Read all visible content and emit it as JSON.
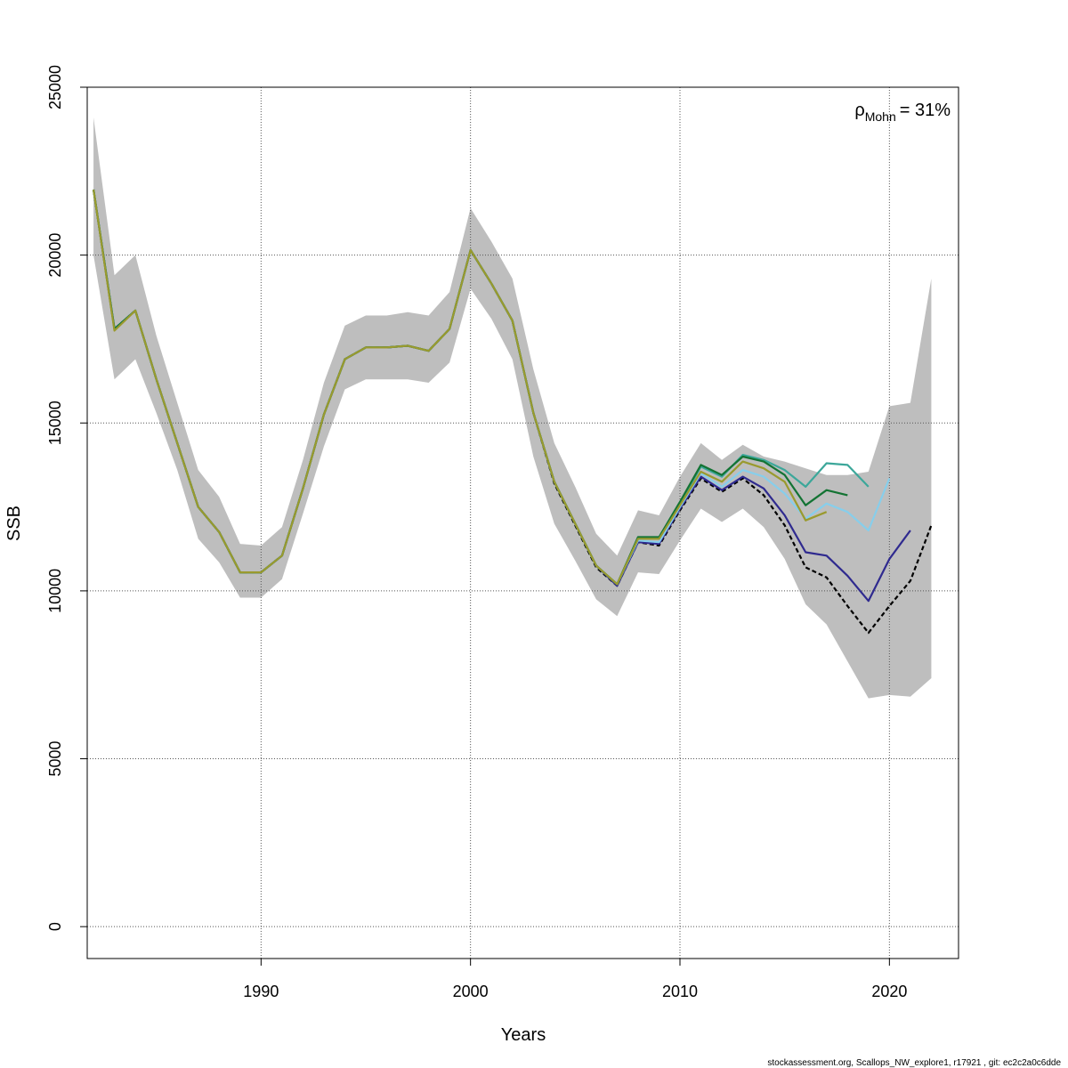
{
  "chart_data": {
    "type": "line",
    "xlabel": "Years",
    "ylabel": "SSB",
    "xlim": [
      1981.7,
      2023.3
    ],
    "ylim": [
      -950,
      25000
    ],
    "x_ticks": [
      1990,
      2000,
      2010,
      2020
    ],
    "y_ticks": [
      0,
      5000,
      10000,
      15000,
      20000,
      25000
    ],
    "grid": true,
    "annotation": {
      "symbol": "ρ",
      "subscript": "Mohn",
      "text": "= 31%"
    },
    "footer": "stockassessment.org, Scallops_NW_explore1, r17921 , git: ec2c2a0c6dde",
    "colors": {
      "band": "#bebebe",
      "grid": "#555555"
    },
    "confidence_band": {
      "x": [
        1982,
        1983,
        1984,
        1985,
        1986,
        1987,
        1988,
        1989,
        1990,
        1991,
        1992,
        1993,
        1994,
        1995,
        1996,
        1997,
        1998,
        1999,
        2000,
        2001,
        2002,
        2003,
        2004,
        2005,
        2006,
        2007,
        2008,
        2009,
        2010,
        2011,
        2012,
        2013,
        2014,
        2015,
        2016,
        2017,
        2018,
        2019,
        2020,
        2021,
        2022
      ],
      "lower": [
        20000,
        16300,
        16900,
        15300,
        13600,
        11550,
        10850,
        9800,
        9800,
        10350,
        12300,
        14300,
        16000,
        16300,
        16300,
        16300,
        16200,
        16800,
        19000,
        18100,
        16900,
        14000,
        12000,
        10900,
        9750,
        9250,
        10550,
        10500,
        11500,
        12450,
        12050,
        12450,
        11900,
        10950,
        9600,
        9000,
        7900,
        6800,
        6900,
        6850,
        7400
      ],
      "upper": [
        24100,
        19400,
        20000,
        17600,
        15600,
        13600,
        12800,
        11400,
        11350,
        11900,
        13900,
        16200,
        17900,
        18200,
        18200,
        18300,
        18200,
        18900,
        21400,
        20400,
        19300,
        16600,
        14400,
        13100,
        11700,
        11050,
        12400,
        12250,
        13400,
        14400,
        13900,
        14350,
        14000,
        13850,
        13650,
        13450,
        13450,
        13550,
        15500,
        15600,
        19300
      ]
    },
    "series": [
      {
        "color": "#000000",
        "dashed": true,
        "x": [
          1982,
          1983,
          1984,
          1985,
          1986,
          1987,
          1988,
          1989,
          1990,
          1991,
          1992,
          1993,
          1994,
          1995,
          1996,
          1997,
          1998,
          1999,
          2000,
          2001,
          2002,
          2003,
          2004,
          2005,
          2006,
          2007,
          2008,
          2009,
          2010,
          2011,
          2012,
          2013,
          2014,
          2015,
          2016,
          2017,
          2018,
          2019,
          2020,
          2021,
          2022
        ],
        "values": [
          21950,
          17800,
          18350,
          16300,
          14400,
          12500,
          11750,
          10550,
          10550,
          11050,
          13050,
          15250,
          16900,
          17250,
          17250,
          17300,
          17150,
          17800,
          20150,
          19150,
          18050,
          15300,
          13200,
          11950,
          10700,
          10150,
          11450,
          11350,
          12400,
          13350,
          12950,
          13350,
          12850,
          11950,
          10700,
          10400,
          9550,
          8750,
          9550,
          10300,
          11950
        ]
      },
      {
        "color": "#2f2a8f",
        "dashed": false,
        "x": [
          1982,
          1983,
          1984,
          1985,
          1986,
          1987,
          1988,
          1989,
          1990,
          1991,
          1992,
          1993,
          1994,
          1995,
          1996,
          1997,
          1998,
          1999,
          2000,
          2001,
          2002,
          2003,
          2004,
          2005,
          2006,
          2007,
          2008,
          2009,
          2010,
          2011,
          2012,
          2013,
          2014,
          2015,
          2016,
          2017,
          2018,
          2019,
          2020,
          2021
        ],
        "values": [
          21950,
          17800,
          18350,
          16300,
          14400,
          12500,
          11750,
          10550,
          10550,
          11050,
          13050,
          15250,
          16900,
          17250,
          17250,
          17300,
          17150,
          17800,
          20150,
          19150,
          18050,
          15300,
          13250,
          12000,
          10750,
          10150,
          11450,
          11400,
          12450,
          13400,
          13000,
          13400,
          13050,
          12250,
          11150,
          11050,
          10450,
          9700,
          10950,
          11800
        ]
      },
      {
        "color": "#87ceeb",
        "dashed": false,
        "x": [
          1982,
          1983,
          1984,
          1985,
          1986,
          1987,
          1988,
          1989,
          1990,
          1991,
          1992,
          1993,
          1994,
          1995,
          1996,
          1997,
          1998,
          1999,
          2000,
          2001,
          2002,
          2003,
          2004,
          2005,
          2006,
          2007,
          2008,
          2009,
          2010,
          2011,
          2012,
          2013,
          2014,
          2015,
          2016,
          2017,
          2018,
          2019,
          2020
        ],
        "values": [
          21950,
          17800,
          18350,
          16300,
          14400,
          12500,
          11750,
          10550,
          10550,
          11050,
          13050,
          15250,
          16900,
          17250,
          17250,
          17300,
          17150,
          17800,
          20150,
          19150,
          18050,
          15300,
          13250,
          12000,
          10750,
          10200,
          11500,
          11450,
          12500,
          13500,
          13100,
          13600,
          13400,
          12900,
          12150,
          12600,
          12350,
          11800,
          13350
        ]
      },
      {
        "color": "#3ca79a",
        "dashed": false,
        "x": [
          1982,
          1983,
          1984,
          1985,
          1986,
          1987,
          1988,
          1989,
          1990,
          1991,
          1992,
          1993,
          1994,
          1995,
          1996,
          1997,
          1998,
          1999,
          2000,
          2001,
          2002,
          2003,
          2004,
          2005,
          2006,
          2007,
          2008,
          2009,
          2010,
          2011,
          2012,
          2013,
          2014,
          2015,
          2016,
          2017,
          2018,
          2019
        ],
        "values": [
          21950,
          17800,
          18350,
          16300,
          14400,
          12500,
          11750,
          10550,
          10550,
          11050,
          13050,
          15250,
          16900,
          17250,
          17250,
          17300,
          17150,
          17800,
          20150,
          19150,
          18050,
          15300,
          13250,
          12000,
          10750,
          10200,
          11550,
          11550,
          12600,
          13700,
          13400,
          14050,
          13900,
          13600,
          13100,
          13800,
          13750,
          13100
        ]
      },
      {
        "color": "#137333",
        "dashed": false,
        "x": [
          1982,
          1983,
          1984,
          1985,
          1986,
          1987,
          1988,
          1989,
          1990,
          1991,
          1992,
          1993,
          1994,
          1995,
          1996,
          1997,
          1998,
          1999,
          2000,
          2001,
          2002,
          2003,
          2004,
          2005,
          2006,
          2007,
          2008,
          2009,
          2010,
          2011,
          2012,
          2013,
          2014,
          2015,
          2016,
          2017,
          2018
        ],
        "values": [
          21950,
          17800,
          18350,
          16300,
          14400,
          12500,
          11750,
          10550,
          10550,
          11050,
          13050,
          15250,
          16900,
          17250,
          17250,
          17300,
          17150,
          17800,
          20150,
          19150,
          18050,
          15300,
          13250,
          12000,
          10750,
          10200,
          11600,
          11600,
          12650,
          13750,
          13450,
          14000,
          13850,
          13450,
          12550,
          13000,
          12850
        ]
      },
      {
        "color": "#9a9a2e",
        "dashed": false,
        "x": [
          1982,
          1983,
          1984,
          1985,
          1986,
          1987,
          1988,
          1989,
          1990,
          1991,
          1992,
          1993,
          1994,
          1995,
          1996,
          1997,
          1998,
          1999,
          2000,
          2001,
          2002,
          2003,
          2004,
          2005,
          2006,
          2007,
          2008,
          2009,
          2010,
          2011,
          2012,
          2013,
          2014,
          2015,
          2016,
          2017
        ],
        "values": [
          21950,
          17750,
          18350,
          16300,
          14400,
          12500,
          11750,
          10550,
          10550,
          11050,
          13050,
          15250,
          16900,
          17250,
          17250,
          17300,
          17150,
          17800,
          20150,
          19150,
          18050,
          15300,
          13250,
          12000,
          10750,
          10200,
          11550,
          11550,
          12550,
          13550,
          13250,
          13850,
          13650,
          13250,
          12100,
          12350
        ]
      }
    ]
  }
}
